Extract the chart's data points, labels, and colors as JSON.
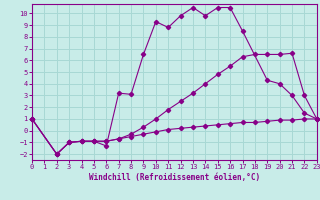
{
  "xlabel": "Windchill (Refroidissement éolien,°C)",
  "background_color": "#c8ece8",
  "grid_color": "#a8d8d4",
  "line_color": "#880088",
  "xlim": [
    0,
    23
  ],
  "ylim": [
    -2.5,
    10.8
  ],
  "xticks": [
    0,
    1,
    2,
    3,
    4,
    5,
    6,
    7,
    8,
    9,
    10,
    11,
    12,
    13,
    14,
    15,
    16,
    17,
    18,
    19,
    20,
    21,
    22,
    23
  ],
  "yticks": [
    -2,
    -1,
    0,
    1,
    2,
    3,
    4,
    5,
    6,
    7,
    8,
    9,
    10
  ],
  "line1_x": [
    0,
    2,
    3,
    4,
    5,
    6,
    7,
    8,
    9,
    10,
    11,
    12,
    13,
    14,
    15,
    16,
    17,
    18,
    19,
    20,
    21,
    22,
    23
  ],
  "line1_y": [
    1.0,
    -2.0,
    -1.0,
    -0.9,
    -0.9,
    -0.9,
    -0.7,
    -0.5,
    -0.3,
    -0.1,
    0.1,
    0.2,
    0.3,
    0.4,
    0.5,
    0.6,
    0.7,
    0.7,
    0.8,
    0.9,
    0.9,
    1.0,
    1.0
  ],
  "line2_x": [
    0,
    2,
    3,
    4,
    5,
    6,
    7,
    8,
    9,
    10,
    11,
    12,
    13,
    14,
    15,
    16,
    17,
    19,
    20,
    21,
    22,
    23
  ],
  "line2_y": [
    1.0,
    -2.0,
    -1.0,
    -0.9,
    -0.9,
    -1.3,
    3.2,
    3.1,
    6.5,
    9.3,
    8.8,
    9.8,
    10.5,
    9.8,
    10.5,
    10.5,
    8.5,
    4.3,
    4.0,
    3.0,
    1.5,
    1.0
  ],
  "line3_x": [
    0,
    2,
    3,
    4,
    5,
    6,
    7,
    8,
    9,
    10,
    11,
    12,
    13,
    14,
    15,
    16,
    17,
    18,
    19,
    20,
    21,
    22,
    23
  ],
  "line3_y": [
    1.0,
    -2.0,
    -1.0,
    -0.9,
    -0.9,
    -0.9,
    -0.7,
    -0.3,
    0.3,
    1.0,
    1.8,
    2.5,
    3.2,
    4.0,
    4.8,
    5.5,
    6.3,
    6.5,
    6.5,
    6.5,
    6.6,
    3.0,
    1.0
  ]
}
